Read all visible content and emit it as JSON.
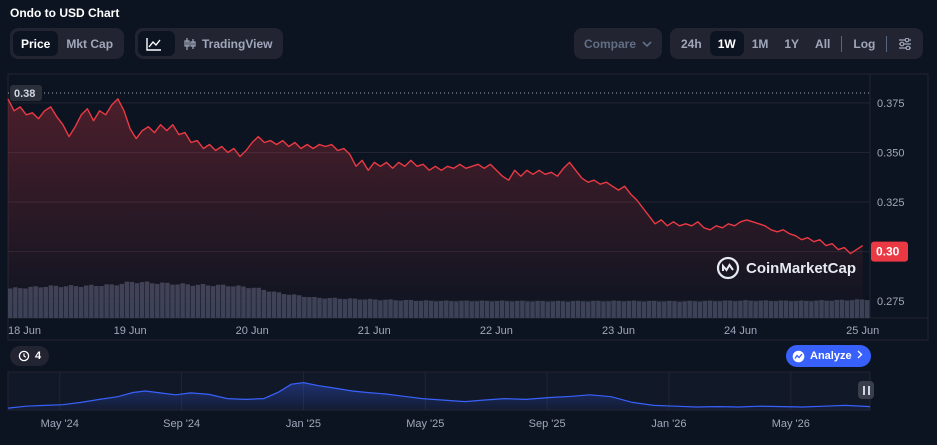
{
  "header": {
    "title": "Ondo to USD Chart"
  },
  "toolbar": {
    "metric_tabs": [
      {
        "label": "Price",
        "active": true
      },
      {
        "label": "Mkt Cap",
        "active": false
      }
    ],
    "chart_type": {
      "line_icon": "line-chart-icon",
      "tradingview_label": "TradingView",
      "tradingview_icon": "candlestick-icon"
    },
    "compare_label": "Compare",
    "ranges": [
      {
        "label": "24h",
        "active": false
      },
      {
        "label": "1W",
        "active": true
      },
      {
        "label": "1M",
        "active": false
      },
      {
        "label": "1Y",
        "active": false
      },
      {
        "label": "All",
        "active": false
      }
    ],
    "log_label": "Log",
    "settings_icon": "sliders-icon"
  },
  "badges": {
    "history_count": "4",
    "analyze_label": "Analyze"
  },
  "watermark": {
    "text": "CoinMarketCap"
  },
  "colors": {
    "line": "#ea3943",
    "volume": "#3b4257",
    "navigator": "#3861fb",
    "grid": "#222531",
    "current_price_bg": "#ea3943"
  },
  "chart_data": {
    "type": "line",
    "y_ticks": [
      "0.375",
      "0.350",
      "0.325",
      "0.300",
      "0.275"
    ],
    "y_tick_values": [
      0.375,
      0.35,
      0.325,
      0.3,
      0.275
    ],
    "ylim": [
      0.2665,
      0.3815
    ],
    "start_price_label": "0.38",
    "start_price_value": 0.38,
    "current_price_label": "0.30",
    "current_price_value": 0.3,
    "x_ticks": [
      "18 Jun",
      "19 Jun",
      "20 Jun",
      "21 Jun",
      "22 Jun",
      "23 Jun",
      "24 Jun",
      "25 Jun"
    ],
    "x_range": [
      0,
      7.06
    ],
    "price_series": [
      [
        0,
        0.377
      ],
      [
        0.05,
        0.371
      ],
      [
        0.1,
        0.373
      ],
      [
        0.15,
        0.369
      ],
      [
        0.2,
        0.37
      ],
      [
        0.25,
        0.367
      ],
      [
        0.3,
        0.371
      ],
      [
        0.35,
        0.373
      ],
      [
        0.4,
        0.368
      ],
      [
        0.45,
        0.364
      ],
      [
        0.5,
        0.358
      ],
      [
        0.55,
        0.363
      ],
      [
        0.6,
        0.369
      ],
      [
        0.65,
        0.372
      ],
      [
        0.7,
        0.366
      ],
      [
        0.75,
        0.371
      ],
      [
        0.8,
        0.369
      ],
      [
        0.85,
        0.374
      ],
      [
        0.9,
        0.377
      ],
      [
        0.95,
        0.371
      ],
      [
        1.0,
        0.362
      ],
      [
        1.05,
        0.357
      ],
      [
        1.1,
        0.361
      ],
      [
        1.15,
        0.363
      ],
      [
        1.2,
        0.36
      ],
      [
        1.25,
        0.364
      ],
      [
        1.3,
        0.361
      ],
      [
        1.35,
        0.364
      ],
      [
        1.4,
        0.359
      ],
      [
        1.45,
        0.36
      ],
      [
        1.5,
        0.355
      ],
      [
        1.55,
        0.356
      ],
      [
        1.6,
        0.352
      ],
      [
        1.65,
        0.354
      ],
      [
        1.7,
        0.351
      ],
      [
        1.75,
        0.353
      ],
      [
        1.8,
        0.35
      ],
      [
        1.85,
        0.352
      ],
      [
        1.9,
        0.348
      ],
      [
        1.95,
        0.351
      ],
      [
        2.0,
        0.355
      ],
      [
        2.05,
        0.358
      ],
      [
        2.1,
        0.355
      ],
      [
        2.15,
        0.356
      ],
      [
        2.2,
        0.354
      ],
      [
        2.25,
        0.356
      ],
      [
        2.3,
        0.353
      ],
      [
        2.35,
        0.355
      ],
      [
        2.4,
        0.352
      ],
      [
        2.45,
        0.354
      ],
      [
        2.5,
        0.352
      ],
      [
        2.55,
        0.354
      ],
      [
        2.6,
        0.353
      ],
      [
        2.65,
        0.354
      ],
      [
        2.7,
        0.351
      ],
      [
        2.75,
        0.352
      ],
      [
        2.8,
        0.349
      ],
      [
        2.85,
        0.343
      ],
      [
        2.9,
        0.346
      ],
      [
        2.95,
        0.341
      ],
      [
        3.0,
        0.345
      ],
      [
        3.05,
        0.343
      ],
      [
        3.1,
        0.345
      ],
      [
        3.15,
        0.342
      ],
      [
        3.2,
        0.345
      ],
      [
        3.25,
        0.343
      ],
      [
        3.3,
        0.346
      ],
      [
        3.35,
        0.343
      ],
      [
        3.4,
        0.344
      ],
      [
        3.45,
        0.341
      ],
      [
        3.5,
        0.343
      ],
      [
        3.55,
        0.341
      ],
      [
        3.6,
        0.343
      ],
      [
        3.65,
        0.342
      ],
      [
        3.7,
        0.344
      ],
      [
        3.75,
        0.342
      ],
      [
        3.8,
        0.343
      ],
      [
        3.85,
        0.344
      ],
      [
        3.9,
        0.342
      ],
      [
        3.95,
        0.344
      ],
      [
        4.0,
        0.341
      ],
      [
        4.05,
        0.338
      ],
      [
        4.1,
        0.336
      ],
      [
        4.15,
        0.341
      ],
      [
        4.2,
        0.338
      ],
      [
        4.25,
        0.341
      ],
      [
        4.3,
        0.339
      ],
      [
        4.35,
        0.341
      ],
      [
        4.4,
        0.339
      ],
      [
        4.45,
        0.34
      ],
      [
        4.5,
        0.338
      ],
      [
        4.55,
        0.342
      ],
      [
        4.6,
        0.345
      ],
      [
        4.65,
        0.341
      ],
      [
        4.7,
        0.337
      ],
      [
        4.75,
        0.335
      ],
      [
        4.8,
        0.336
      ],
      [
        4.85,
        0.334
      ],
      [
        4.9,
        0.335
      ],
      [
        4.95,
        0.333
      ],
      [
        5.0,
        0.331
      ],
      [
        5.05,
        0.333
      ],
      [
        5.1,
        0.329
      ],
      [
        5.15,
        0.326
      ],
      [
        5.2,
        0.322
      ],
      [
        5.25,
        0.318
      ],
      [
        5.3,
        0.314
      ],
      [
        5.35,
        0.316
      ],
      [
        5.4,
        0.313
      ],
      [
        5.45,
        0.315
      ],
      [
        5.5,
        0.313
      ],
      [
        5.55,
        0.314
      ],
      [
        5.6,
        0.313
      ],
      [
        5.65,
        0.315
      ],
      [
        5.7,
        0.312
      ],
      [
        5.75,
        0.311
      ],
      [
        5.8,
        0.313
      ],
      [
        5.85,
        0.312
      ],
      [
        5.9,
        0.314
      ],
      [
        5.95,
        0.313
      ],
      [
        6.0,
        0.315
      ],
      [
        6.05,
        0.316
      ],
      [
        6.1,
        0.315
      ],
      [
        6.15,
        0.314
      ],
      [
        6.2,
        0.313
      ],
      [
        6.25,
        0.311
      ],
      [
        6.3,
        0.31
      ],
      [
        6.35,
        0.311
      ],
      [
        6.4,
        0.309
      ],
      [
        6.45,
        0.308
      ],
      [
        6.5,
        0.306
      ],
      [
        6.55,
        0.307
      ],
      [
        6.6,
        0.305
      ],
      [
        6.65,
        0.306
      ],
      [
        6.7,
        0.303
      ],
      [
        6.75,
        0.304
      ],
      [
        6.8,
        0.301
      ],
      [
        6.85,
        0.302
      ],
      [
        6.9,
        0.299
      ],
      [
        6.95,
        0.301
      ],
      [
        7.0,
        0.303
      ]
    ],
    "volume_series": [
      [
        0,
        0.8
      ],
      [
        0.3,
        0.86
      ],
      [
        0.6,
        0.87
      ],
      [
        0.85,
        0.9
      ],
      [
        1.0,
        0.98
      ],
      [
        1.2,
        0.95
      ],
      [
        1.5,
        0.9
      ],
      [
        1.8,
        0.88
      ],
      [
        2.0,
        0.82
      ],
      [
        2.2,
        0.68
      ],
      [
        2.5,
        0.55
      ],
      [
        3.0,
        0.5
      ],
      [
        3.5,
        0.46
      ],
      [
        4.0,
        0.46
      ],
      [
        4.5,
        0.45
      ],
      [
        5.0,
        0.46
      ],
      [
        5.5,
        0.45
      ],
      [
        6.0,
        0.47
      ],
      [
        6.5,
        0.46
      ],
      [
        7.0,
        0.5
      ]
    ],
    "navigator": {
      "x_ticks": [
        "May '24",
        "Sep '24",
        "Jan '25",
        "May '25",
        "Sep '25",
        "Jan '26",
        "May '26"
      ],
      "x_tick_values": [
        1.7,
        5.7,
        9.7,
        13.7,
        17.7,
        21.7,
        25.7
      ],
      "x_range": [
        0,
        28.3
      ],
      "ylim": [
        0,
        1
      ],
      "series": [
        [
          0,
          0.05
        ],
        [
          0.6,
          0.1
        ],
        [
          1.2,
          0.12
        ],
        [
          1.8,
          0.14
        ],
        [
          2.4,
          0.2
        ],
        [
          3.0,
          0.28
        ],
        [
          3.6,
          0.35
        ],
        [
          4.1,
          0.46
        ],
        [
          4.5,
          0.5
        ],
        [
          5.0,
          0.45
        ],
        [
          5.5,
          0.4
        ],
        [
          6.0,
          0.45
        ],
        [
          6.6,
          0.41
        ],
        [
          7.2,
          0.3
        ],
        [
          7.8,
          0.28
        ],
        [
          8.4,
          0.3
        ],
        [
          8.9,
          0.48
        ],
        [
          9.3,
          0.68
        ],
        [
          9.7,
          0.72
        ],
        [
          10.2,
          0.64
        ],
        [
          10.7,
          0.58
        ],
        [
          11.3,
          0.5
        ],
        [
          11.8,
          0.46
        ],
        [
          12.4,
          0.42
        ],
        [
          13.0,
          0.36
        ],
        [
          13.6,
          0.3
        ],
        [
          14.3,
          0.26
        ],
        [
          15.0,
          0.22
        ],
        [
          15.6,
          0.26
        ],
        [
          16.3,
          0.3
        ],
        [
          17.0,
          0.28
        ],
        [
          17.8,
          0.33
        ],
        [
          18.5,
          0.36
        ],
        [
          19.1,
          0.4
        ],
        [
          19.8,
          0.35
        ],
        [
          20.5,
          0.2
        ],
        [
          21.2,
          0.12
        ],
        [
          21.9,
          0.1
        ],
        [
          22.6,
          0.08
        ],
        [
          23.3,
          0.09
        ],
        [
          24.0,
          0.08
        ],
        [
          24.7,
          0.1
        ],
        [
          25.4,
          0.09
        ],
        [
          26.1,
          0.08
        ],
        [
          26.8,
          0.1
        ],
        [
          27.5,
          0.12
        ],
        [
          28.3,
          0.09
        ]
      ]
    }
  }
}
